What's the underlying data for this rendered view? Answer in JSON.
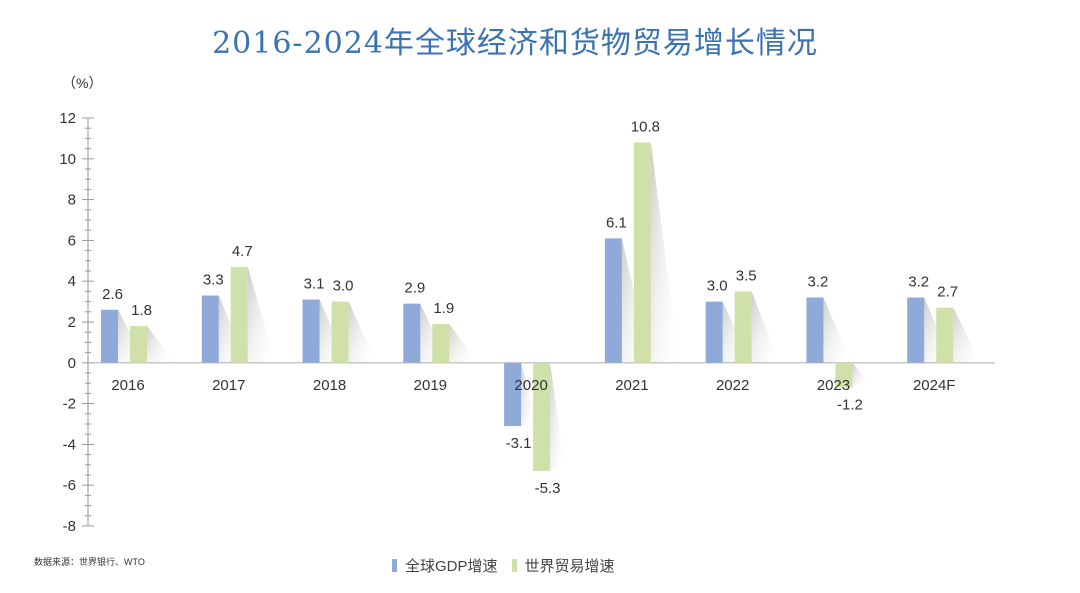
{
  "title": "2016-2024年全球经济和货物贸易增长情况",
  "source": "数据来源：世界银行、WTO",
  "chart_data": {
    "type": "bar",
    "unit_label": "（%）",
    "categories": [
      "2016",
      "2017",
      "2018",
      "2019",
      "2020",
      "2021",
      "2022",
      "2023",
      "2024F"
    ],
    "series": [
      {
        "name": "全球GDP增速",
        "color": "#8faad8",
        "values": [
          2.6,
          3.3,
          3.1,
          2.9,
          -3.1,
          6.1,
          3.0,
          3.2,
          3.2
        ],
        "labels": [
          "2.6",
          "3.3",
          "3.1",
          "2.9",
          "-3.1",
          "6.1",
          "3.0",
          "3.2",
          "3.2"
        ]
      },
      {
        "name": "世界贸易增速",
        "color": "#cfe0a8",
        "values": [
          1.8,
          4.7,
          3.0,
          1.9,
          -5.3,
          10.8,
          3.5,
          -1.2,
          2.7
        ],
        "labels": [
          "1.8",
          "4.7",
          "3.0",
          "1.9",
          "-5.3",
          "10.8",
          "3.5",
          "-1.2",
          "2.7"
        ]
      }
    ],
    "yticks": [
      "12",
      "10",
      "8",
      "6",
      "4",
      "2",
      "0",
      "-2",
      "-4",
      "-6",
      "-8"
    ],
    "ylim": [
      -8,
      12
    ],
    "legend_position": "bottom"
  }
}
